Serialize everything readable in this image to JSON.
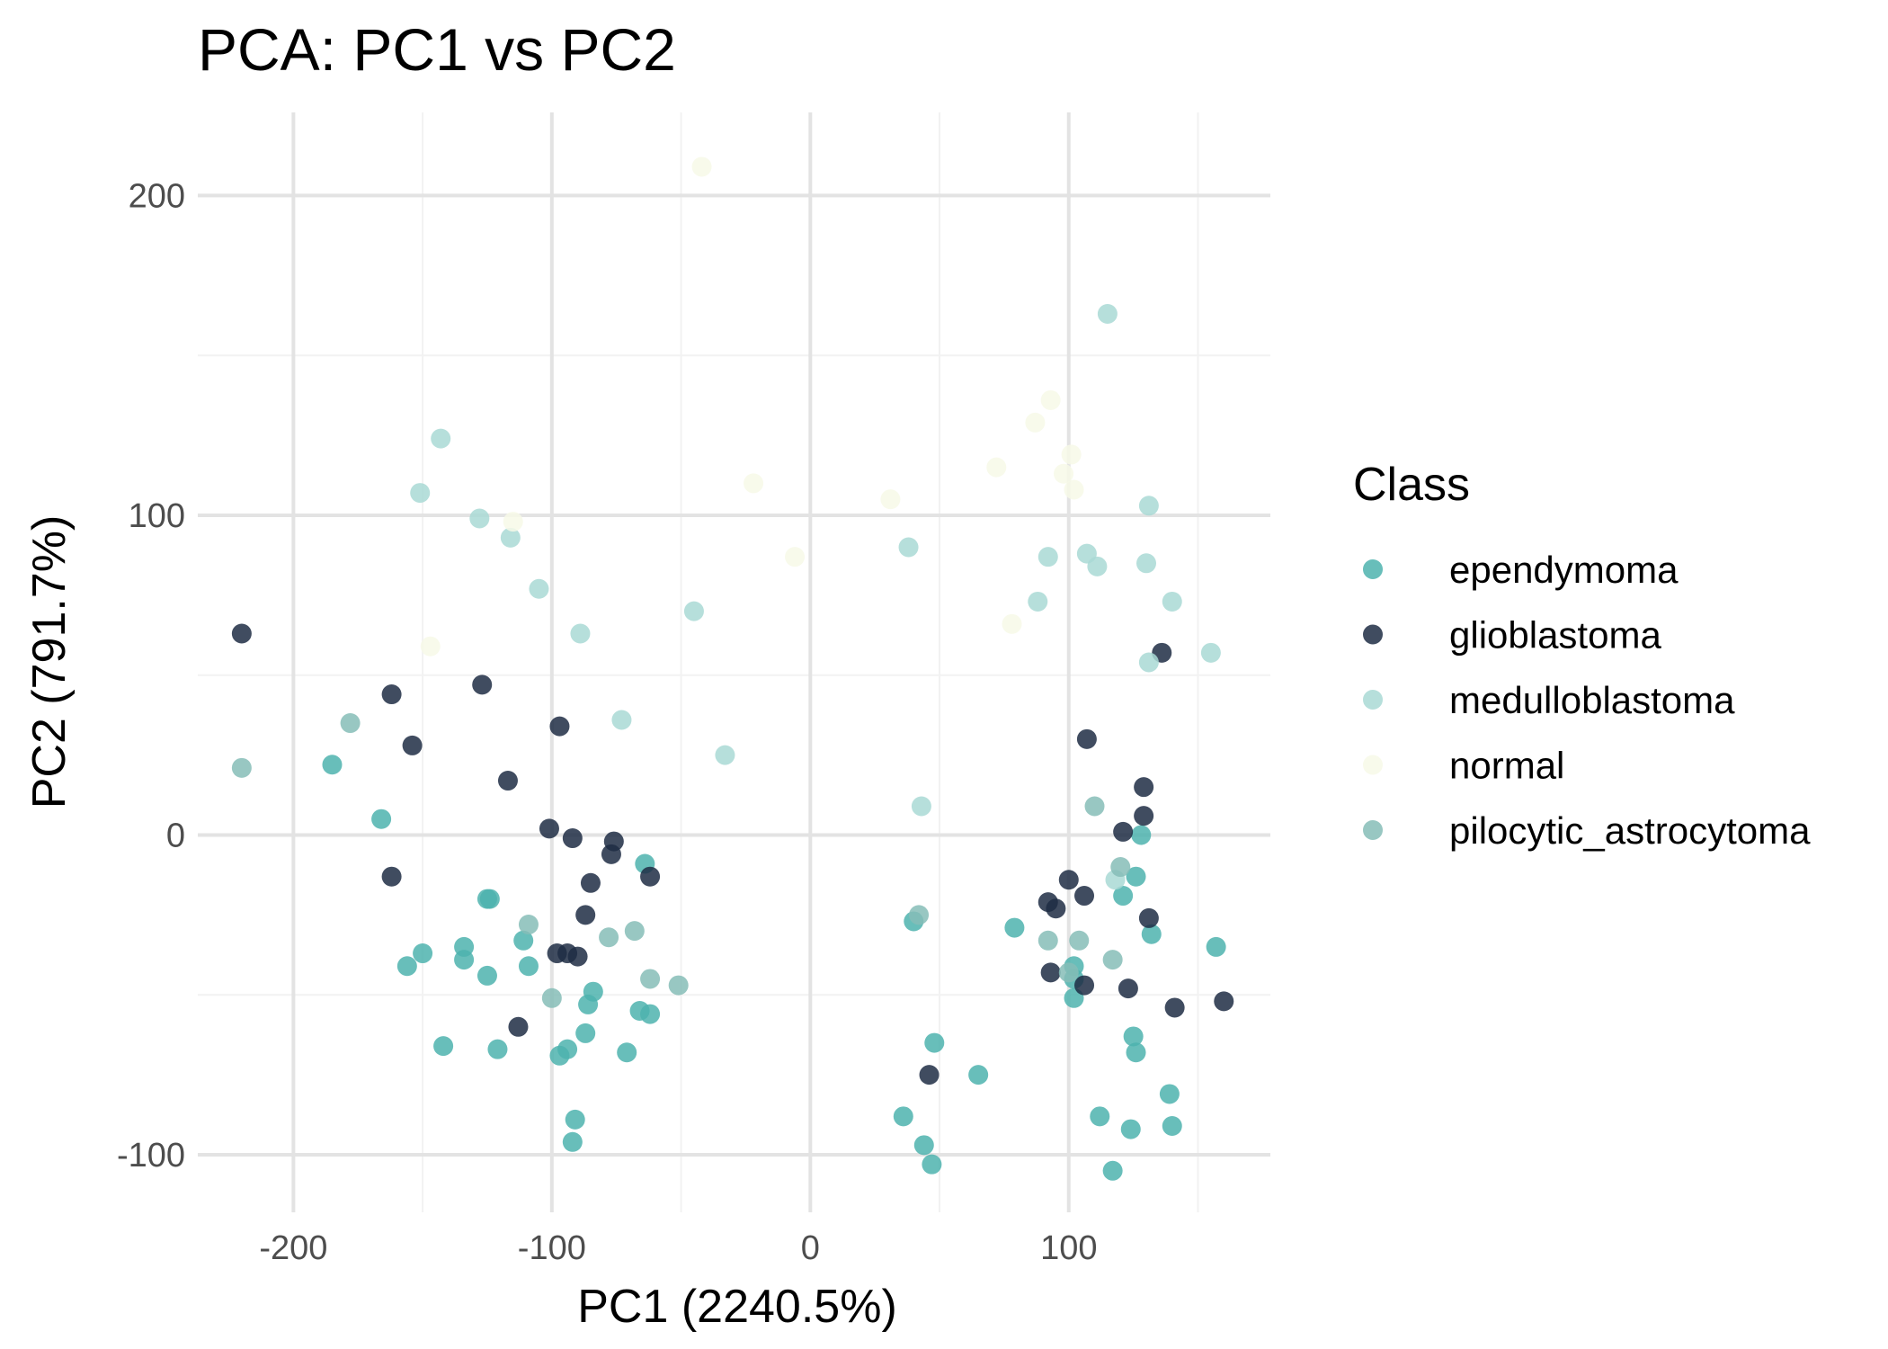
{
  "chart_data": {
    "type": "scatter",
    "title": "PCA: PC1 vs PC2",
    "xlabel": "PC1 (2240.5%)",
    "ylabel": "PC2 (791.7%)",
    "xlim": [
      -237,
      178
    ],
    "ylim": [
      -118,
      226
    ],
    "x_ticks": [
      -200,
      -100,
      0,
      100
    ],
    "x_tick_labels": [
      "-200",
      "-100",
      "0",
      "100"
    ],
    "y_ticks": [
      -100,
      0,
      100,
      200
    ],
    "y_tick_labels": [
      "-100",
      "0",
      "100",
      "200"
    ],
    "grid": true,
    "legend": {
      "title": "Class",
      "position": "right"
    },
    "series": [
      {
        "name": "ependymoma",
        "color": "#4DB3AE",
        "points": [
          [
            -185,
            22
          ],
          [
            -166,
            5
          ],
          [
            -156,
            -41
          ],
          [
            -150,
            -37
          ],
          [
            -142,
            -66
          ],
          [
            -134,
            -39
          ],
          [
            -134,
            -35
          ],
          [
            -125,
            -20
          ],
          [
            -124,
            -20
          ],
          [
            -125,
            -44
          ],
          [
            -121,
            -67
          ],
          [
            -111,
            -33
          ],
          [
            -109,
            -41
          ],
          [
            -97,
            -69
          ],
          [
            -94,
            -67
          ],
          [
            -92,
            -96
          ],
          [
            -91,
            -89
          ],
          [
            -87,
            -62
          ],
          [
            -86,
            -53
          ],
          [
            -84,
            -49
          ],
          [
            -71,
            -68
          ],
          [
            -66,
            -55
          ],
          [
            -64,
            -9
          ],
          [
            -62,
            -56
          ],
          [
            36,
            -88
          ],
          [
            40,
            -27
          ],
          [
            44,
            -97
          ],
          [
            47,
            -103
          ],
          [
            48,
            -65
          ],
          [
            65,
            -75
          ],
          [
            79,
            -29
          ],
          [
            102,
            -41
          ],
          [
            102,
            -45
          ],
          [
            102,
            -51
          ],
          [
            112,
            -88
          ],
          [
            117,
            -105
          ],
          [
            121,
            -19
          ],
          [
            124,
            -92
          ],
          [
            125,
            -63
          ],
          [
            126,
            -68
          ],
          [
            126,
            -13
          ],
          [
            128,
            0
          ],
          [
            132,
            -31
          ],
          [
            139,
            -81
          ],
          [
            140,
            -91
          ],
          [
            157,
            -35
          ]
        ]
      },
      {
        "name": "glioblastoma",
        "color": "#1F2D44",
        "points": [
          [
            -220,
            63
          ],
          [
            -162,
            44
          ],
          [
            -162,
            -13
          ],
          [
            -154,
            28
          ],
          [
            -127,
            47
          ],
          [
            -117,
            17
          ],
          [
            -113,
            -60
          ],
          [
            -101,
            2
          ],
          [
            -98,
            -37
          ],
          [
            -97,
            34
          ],
          [
            -94,
            -37
          ],
          [
            -92,
            -1
          ],
          [
            -90,
            -38
          ],
          [
            -87,
            -25
          ],
          [
            -85,
            -15
          ],
          [
            -77,
            -6
          ],
          [
            -76,
            -2
          ],
          [
            -62,
            -13
          ],
          [
            46,
            -75
          ],
          [
            92,
            -21
          ],
          [
            93,
            -43
          ],
          [
            95,
            -23
          ],
          [
            100,
            -14
          ],
          [
            106,
            -47
          ],
          [
            106,
            -19
          ],
          [
            107,
            30
          ],
          [
            121,
            1
          ],
          [
            123,
            -48
          ],
          [
            129,
            15
          ],
          [
            129,
            6
          ],
          [
            131,
            -26
          ],
          [
            136,
            57
          ],
          [
            141,
            -54
          ],
          [
            160,
            -52
          ]
        ]
      },
      {
        "name": "medulloblastoma",
        "color": "#A9D9D5",
        "points": [
          [
            -151,
            107
          ],
          [
            -143,
            124
          ],
          [
            -128,
            99
          ],
          [
            -116,
            93
          ],
          [
            -105,
            77
          ],
          [
            -89,
            63
          ],
          [
            -73,
            36
          ],
          [
            -45,
            70
          ],
          [
            -33,
            25
          ],
          [
            38,
            90
          ],
          [
            43,
            9
          ],
          [
            88,
            73
          ],
          [
            92,
            87
          ],
          [
            107,
            88
          ],
          [
            111,
            84
          ],
          [
            115,
            163
          ],
          [
            118,
            -14
          ],
          [
            130,
            85
          ],
          [
            131,
            54
          ],
          [
            131,
            103
          ],
          [
            140,
            73
          ],
          [
            155,
            57
          ]
        ]
      },
      {
        "name": "normal",
        "color": "#F7F9E8",
        "points": [
          [
            -147,
            59
          ],
          [
            -115,
            98
          ],
          [
            -42,
            209
          ],
          [
            -22,
            110
          ],
          [
            -6,
            87
          ],
          [
            31,
            105
          ],
          [
            72,
            115
          ],
          [
            78,
            66
          ],
          [
            87,
            129
          ],
          [
            93,
            136
          ],
          [
            98,
            113
          ],
          [
            101,
            119
          ],
          [
            102,
            108
          ]
        ]
      },
      {
        "name": "pilocytic_astrocytoma",
        "color": "#86BDB7",
        "points": [
          [
            -220,
            21
          ],
          [
            -178,
            35
          ],
          [
            -109,
            -28
          ],
          [
            -100,
            -51
          ],
          [
            -78,
            -32
          ],
          [
            -68,
            -30
          ],
          [
            -62,
            -45
          ],
          [
            -51,
            -47
          ],
          [
            42,
            -25
          ],
          [
            92,
            -33
          ],
          [
            100,
            -43
          ],
          [
            104,
            -33
          ],
          [
            110,
            9
          ],
          [
            117,
            -39
          ],
          [
            120,
            -10
          ]
        ]
      }
    ]
  }
}
